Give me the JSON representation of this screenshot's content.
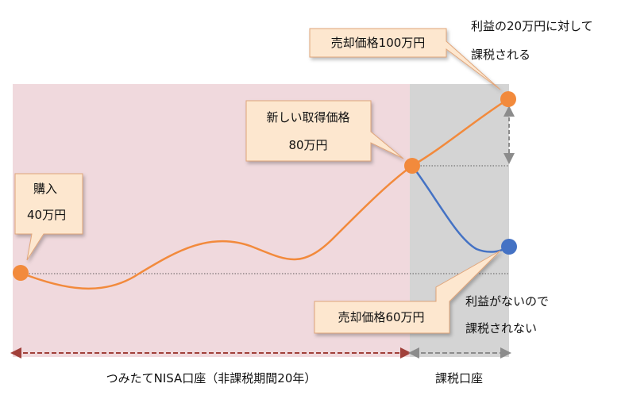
{
  "colors": {
    "nisa_bg": "#f0d9dd",
    "taxable_bg": "#d4d4d4",
    "orange_line": "#f28a3c",
    "blue_line": "#4472c4",
    "arrow_nisa": "#a1403a",
    "arrow_taxable": "#8c8c8c",
    "callout_fill": "#fde7cf",
    "callout_stroke": "#e0a57a"
  },
  "callouts": {
    "purchase": {
      "line1": "購入",
      "line2": "40万円"
    },
    "new_cost": {
      "line1": "新しい取得価格",
      "line2": "80万円"
    },
    "sell_100": {
      "text": "売却価格100万円"
    },
    "sell_60": {
      "text": "売却価格60万円"
    }
  },
  "notes": {
    "profit_taxed": {
      "line1": "利益の20万円に対して",
      "line2": "課税される"
    },
    "no_profit": {
      "line1": "利益がないので",
      "line2": "課税されない"
    }
  },
  "labels": {
    "nisa_account": "つみたてNISA口座（非課税期間20年）",
    "taxable_account": "課税口座"
  }
}
